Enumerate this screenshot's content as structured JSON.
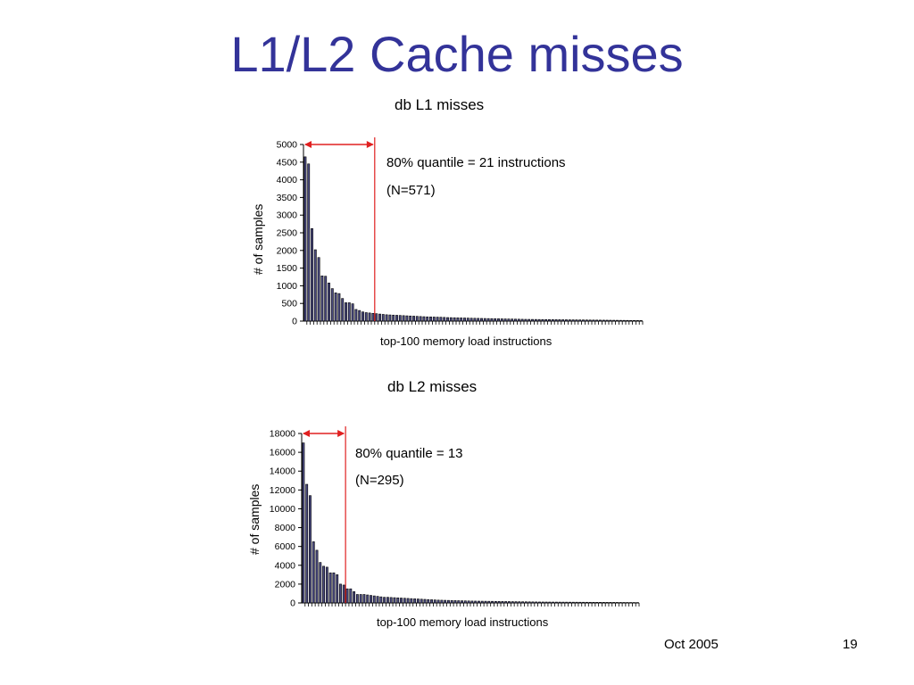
{
  "slide": {
    "title": "L1/L2 Cache misses",
    "footer_date": "Oct 2005",
    "page_number": "19"
  },
  "chart_data": [
    {
      "type": "bar",
      "title": "db L1 misses",
      "xlabel": "top-100 memory load instructions",
      "ylabel": "# of samples",
      "ylim": [
        0,
        5000
      ],
      "yticks": [
        0,
        500,
        1000,
        1500,
        2000,
        2500,
        3000,
        3500,
        4000,
        4500,
        5000
      ],
      "values": [
        4650,
        4450,
        2620,
        2020,
        1800,
        1280,
        1270,
        1080,
        920,
        800,
        780,
        640,
        520,
        520,
        490,
        330,
        300,
        260,
        240,
        230,
        220,
        210,
        200,
        190,
        180,
        175,
        170,
        165,
        160,
        155,
        150,
        145,
        140,
        135,
        130,
        125,
        120,
        118,
        115,
        112,
        110,
        105,
        100,
        98,
        95,
        92,
        90,
        88,
        85,
        82,
        80,
        78,
        76,
        74,
        72,
        70,
        68,
        66,
        64,
        62,
        60,
        58,
        56,
        54,
        52,
        50,
        49,
        48,
        47,
        46,
        45,
        44,
        43,
        42,
        41,
        40,
        39,
        38,
        37,
        36,
        35,
        34,
        33,
        32,
        31,
        30,
        29,
        28,
        27,
        26,
        25,
        24,
        23,
        22,
        21,
        20,
        19,
        18,
        17,
        16
      ],
      "annotation": {
        "quantile_text": "80% quantile = 21 instructions",
        "n_text": "(N=571)",
        "marker_index": 21
      }
    },
    {
      "type": "bar",
      "title": "db L2 misses",
      "xlabel": "top-100 memory load instructions",
      "ylabel": "# of samples",
      "ylim": [
        0,
        18000
      ],
      "yticks": [
        0,
        2000,
        4000,
        6000,
        8000,
        10000,
        12000,
        14000,
        16000,
        18000
      ],
      "values": [
        17000,
        12600,
        11400,
        6500,
        5600,
        4300,
        3900,
        3800,
        3200,
        3200,
        3000,
        2000,
        1900,
        1500,
        1500,
        1200,
        900,
        900,
        900,
        850,
        800,
        750,
        700,
        650,
        600,
        600,
        580,
        560,
        540,
        520,
        500,
        480,
        460,
        440,
        420,
        400,
        380,
        360,
        340,
        320,
        300,
        290,
        280,
        270,
        260,
        250,
        240,
        230,
        220,
        210,
        200,
        195,
        190,
        185,
        180,
        175,
        170,
        165,
        160,
        155,
        150,
        145,
        140,
        135,
        130,
        125,
        120,
        115,
        110,
        105,
        100,
        98,
        96,
        94,
        92,
        90,
        88,
        86,
        84,
        82,
        80,
        78,
        76,
        74,
        72,
        70,
        68,
        66,
        64,
        62,
        60,
        58,
        56,
        54,
        52,
        50,
        48,
        46,
        44,
        42
      ],
      "annotation": {
        "quantile_text": "80% quantile = 13",
        "n_text": "(N=295)",
        "marker_index": 13
      }
    }
  ],
  "colors": {
    "title": "#333399",
    "bar_fill": "#4a4a80",
    "marker": "#e02020",
    "axis": "#000000"
  }
}
